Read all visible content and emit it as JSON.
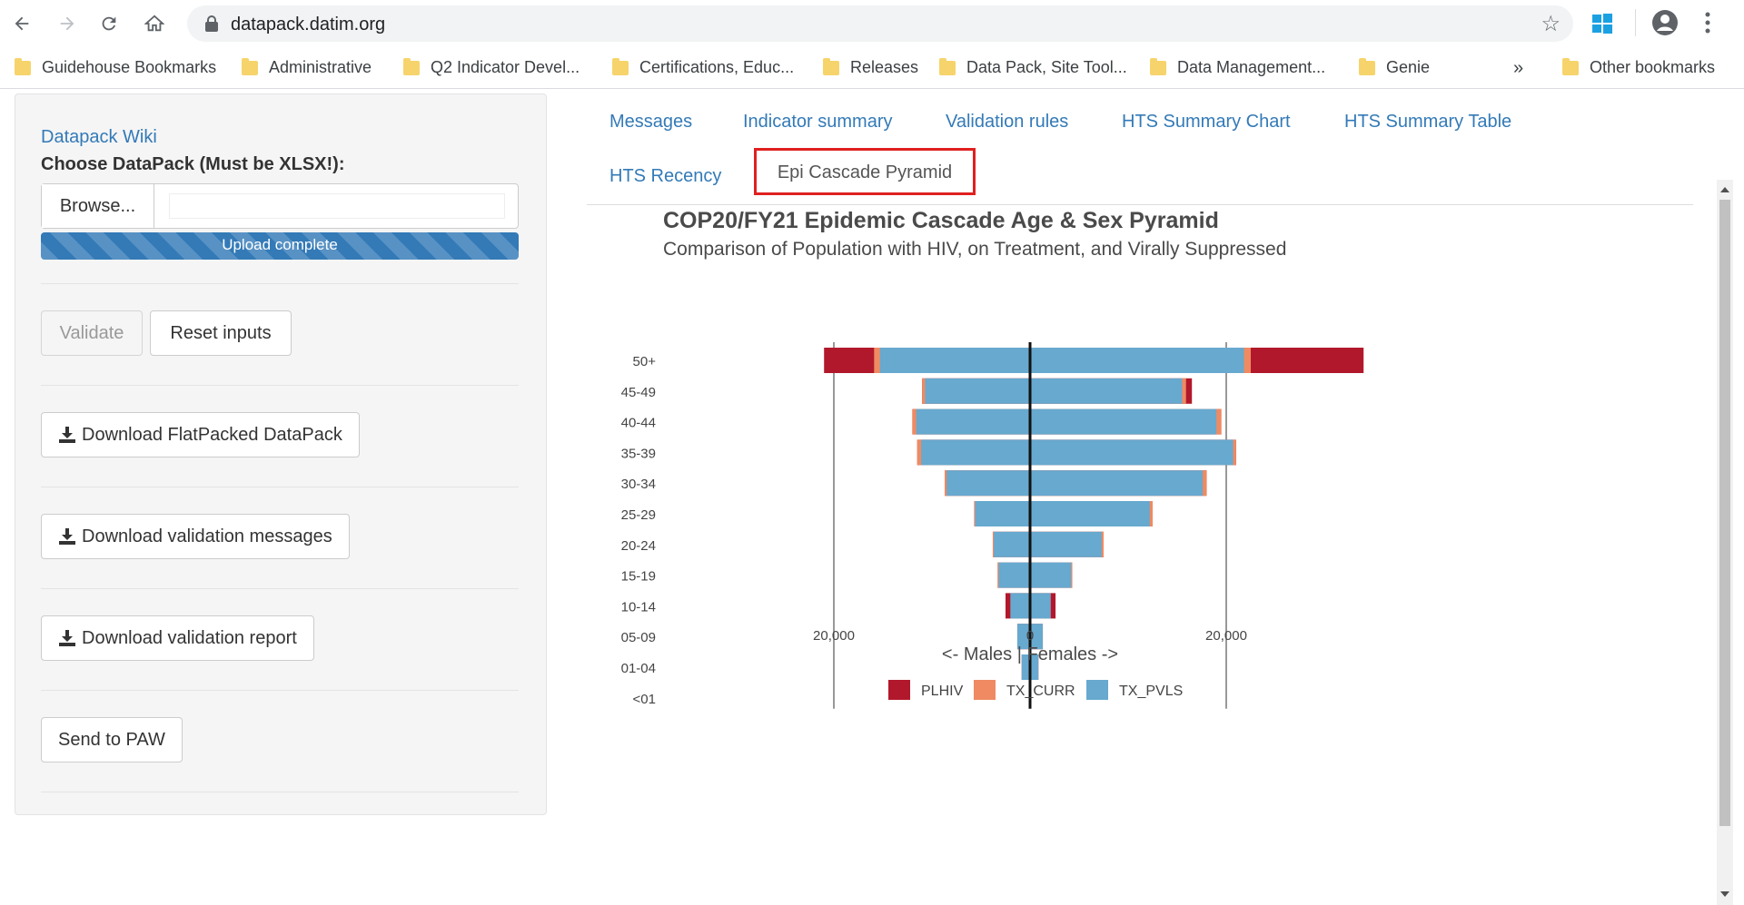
{
  "browser": {
    "url": "datapack.datim.org",
    "bookmarks": [
      {
        "label": "Guidehouse Bookmarks"
      },
      {
        "label": "Administrative"
      },
      {
        "label": "Q2 Indicator Devel..."
      },
      {
        "label": "Certifications, Educ..."
      },
      {
        "label": "Releases"
      },
      {
        "label": "Data Pack, Site Tool..."
      },
      {
        "label": "Data Management..."
      },
      {
        "label": "Genie"
      }
    ],
    "more": "»",
    "other_bookmarks": "Other bookmarks"
  },
  "sidebar": {
    "wiki_link": "Datapack Wiki",
    "choose_label": "Choose DataPack (Must be XLSX!):",
    "browse_label": "Browse...",
    "upload_status": "Upload complete",
    "validate_label": "Validate",
    "reset_label": "Reset inputs",
    "download_flat_label": "Download FlatPacked DataPack",
    "download_messages_label": "Download validation messages",
    "download_report_label": "Download validation report",
    "send_paw_label": "Send to PAW"
  },
  "tabs": [
    {
      "label": "Messages"
    },
    {
      "label": "Indicator summary"
    },
    {
      "label": "Validation rules"
    },
    {
      "label": "HTS Summary Chart"
    },
    {
      "label": "HTS Summary Table"
    },
    {
      "label": "HTS Recency"
    },
    {
      "label": "Epi Cascade Pyramid",
      "active": true
    }
  ],
  "chart_data": {
    "type": "bar",
    "orientation": "horizontal-pyramid",
    "title": "COP20/FY21 Epidemic Cascade Age & Sex Pyramid",
    "subtitle": "Comparison of Population with HIV, on Treatment, and Virally Suppressed",
    "xlabel": "<- Males | Females ->",
    "x_ticks": [
      "20,000",
      "0",
      "20,000"
    ],
    "xlim": [
      -26000,
      40000
    ],
    "categories": [
      "50+",
      "45-49",
      "40-44",
      "35-39",
      "30-34",
      "25-29",
      "20-24",
      "15-19",
      "10-14",
      "05-09",
      "01-04",
      "<01"
    ],
    "legend": [
      "PLHIV",
      "TX_CURR",
      "TX_PVLS"
    ],
    "colors": {
      "PLHIV": "#b2182b",
      "TX_CURR": "#ef8a62",
      "TX_PVLS": "#67a9cf"
    },
    "series": [
      {
        "name": "PLHIV",
        "males": [
          21000,
          11000,
          12000,
          11500,
          8700,
          5700,
          3800,
          3300,
          2500,
          1300,
          850,
          0
        ],
        "females": [
          34000,
          16500,
          19500,
          21000,
          18000,
          12500,
          7500,
          4300,
          2600,
          1300,
          850,
          0
        ]
      },
      {
        "name": "TX_CURR",
        "males": [
          15900,
          11000,
          12000,
          11500,
          8700,
          5700,
          3800,
          3300,
          2000,
          1300,
          850,
          0
        ],
        "females": [
          22500,
          15900,
          19500,
          21000,
          18000,
          12500,
          7500,
          4300,
          2100,
          1300,
          850,
          0
        ]
      },
      {
        "name": "TX_PVLS",
        "males": [
          15300,
          10700,
          11600,
          11100,
          8500,
          5600,
          3700,
          3200,
          2000,
          1300,
          850,
          0
        ],
        "females": [
          21800,
          15500,
          19000,
          20700,
          17600,
          12200,
          7300,
          4200,
          2100,
          1300,
          850,
          0
        ]
      }
    ]
  }
}
